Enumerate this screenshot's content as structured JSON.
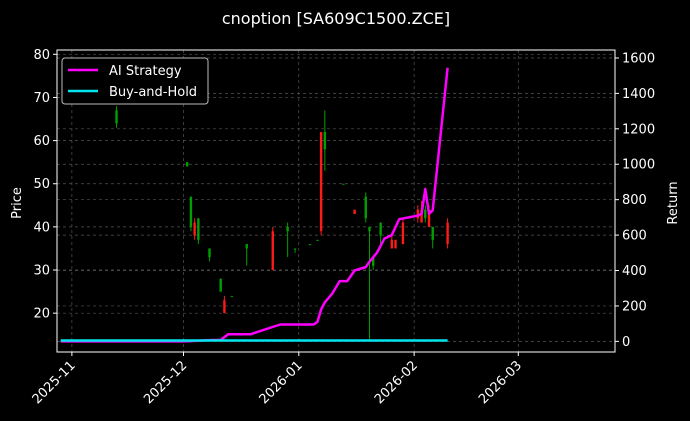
{
  "chart_data": {
    "type": "candlestick",
    "title": "cnoption [SA609C1500.ZCE]",
    "xlabel": "",
    "ylabel_left": "Price",
    "ylabel_right": "Return",
    "ylim_left": [
      11,
      81
    ],
    "ylim_right": [
      -60,
      1645
    ],
    "yticks_left": [
      20,
      30,
      40,
      50,
      60,
      70,
      80
    ],
    "yticks_right": [
      0,
      200,
      400,
      600,
      800,
      1000,
      1200,
      1400,
      1600
    ],
    "x_range": [
      "2025-10-28",
      "2026-03-27"
    ],
    "xticks": [
      "2025-11",
      "2025-12",
      "2026-01",
      "2026-02",
      "2026-03"
    ],
    "grid": true,
    "legend_position": "top-left",
    "colors": {
      "background": "#000000",
      "up": "#00a000",
      "down": "#ff1a1a",
      "strategy": "#ff00ff",
      "buy_hold": "#00e5ee"
    },
    "candles": [
      {
        "date": "2025-11-13",
        "open": 64,
        "close": 67,
        "high": 68,
        "low": 63
      },
      {
        "date": "2025-12-02",
        "open": 54,
        "close": 55,
        "high": 55,
        "low": 54
      },
      {
        "date": "2025-12-03",
        "open": 40,
        "close": 47,
        "high": 47,
        "low": 39
      },
      {
        "date": "2025-12-04",
        "open": 41,
        "close": 38,
        "high": 42,
        "low": 37
      },
      {
        "date": "2025-12-05",
        "open": 37,
        "close": 42,
        "high": 42,
        "low": 36
      },
      {
        "date": "2025-12-08",
        "open": 33,
        "close": 35,
        "high": 35,
        "low": 32
      },
      {
        "date": "2025-12-11",
        "open": 25,
        "close": 28,
        "high": 28,
        "low": 25
      },
      {
        "date": "2025-12-12",
        "open": 23,
        "close": 20,
        "high": 24,
        "low": 20
      },
      {
        "date": "2025-12-14",
        "open": 24,
        "close": 24,
        "high": 24,
        "low": 24
      },
      {
        "date": "2025-12-18",
        "open": 35,
        "close": 36,
        "high": 36,
        "low": 31
      },
      {
        "date": "2025-12-25",
        "open": 39,
        "close": 30,
        "high": 40,
        "low": 30
      },
      {
        "date": "2025-12-29",
        "open": 39,
        "close": 40,
        "high": 41,
        "low": 33
      },
      {
        "date": "2025-12-31",
        "open": 35,
        "close": 35,
        "high": 35,
        "low": 34
      },
      {
        "date": "2026-01-04",
        "open": 36,
        "close": 36,
        "high": 36,
        "low": 36
      },
      {
        "date": "2026-01-06",
        "open": 37,
        "close": 37,
        "high": 37,
        "low": 37
      },
      {
        "date": "2026-01-07",
        "open": 62,
        "close": 39,
        "high": 62,
        "low": 38
      },
      {
        "date": "2026-01-08",
        "open": 58,
        "close": 62,
        "high": 67,
        "low": 53
      },
      {
        "date": "2026-01-13",
        "open": 50,
        "close": 50,
        "high": 50,
        "low": 50
      },
      {
        "date": "2026-01-16",
        "open": 44,
        "close": 43,
        "high": 44,
        "low": 43
      },
      {
        "date": "2026-01-19",
        "open": 42,
        "close": 47,
        "high": 48,
        "low": 41
      },
      {
        "date": "2026-01-20",
        "open": 39,
        "close": 40,
        "high": 40,
        "low": 14
      },
      {
        "date": "2026-01-21",
        "open": 31,
        "close": 33,
        "high": 33,
        "low": 30
      },
      {
        "date": "2026-01-23",
        "open": 38,
        "close": 41,
        "high": 41,
        "low": 36
      },
      {
        "date": "2026-01-26",
        "open": 37,
        "close": 35,
        "high": 38,
        "low": 35
      },
      {
        "date": "2026-01-27",
        "open": 37,
        "close": 35,
        "high": 37,
        "low": 35
      },
      {
        "date": "2026-01-29",
        "open": 41,
        "close": 36,
        "high": 42,
        "low": 36
      },
      {
        "date": "2026-02-02",
        "open": 44,
        "close": 42,
        "high": 45,
        "low": 41
      },
      {
        "date": "2026-02-03",
        "open": 44,
        "close": 41,
        "high": 46,
        "low": 41
      },
      {
        "date": "2026-02-04",
        "open": 42,
        "close": 44,
        "high": 45,
        "low": 41
      },
      {
        "date": "2026-02-05",
        "open": 44,
        "close": 40,
        "high": 45,
        "low": 40
      },
      {
        "date": "2026-02-06",
        "open": 37,
        "close": 40,
        "high": 40,
        "low": 35
      },
      {
        "date": "2026-02-10",
        "open": 41,
        "close": 36,
        "high": 42,
        "low": 35
      }
    ],
    "series": [
      {
        "name": "AI Strategy",
        "points": [
          [
            "2025-10-29",
            0
          ],
          [
            "2025-12-01",
            0
          ],
          [
            "2025-12-09",
            8
          ],
          [
            "2025-12-11",
            8
          ],
          [
            "2025-12-13",
            40
          ],
          [
            "2025-12-19",
            40
          ],
          [
            "2025-12-27",
            95
          ],
          [
            "2025-12-29",
            95
          ],
          [
            "2026-01-05",
            95
          ],
          [
            "2026-01-06",
            110
          ],
          [
            "2026-01-07",
            180
          ],
          [
            "2026-01-08",
            220
          ],
          [
            "2026-01-10",
            270
          ],
          [
            "2026-01-12",
            340
          ],
          [
            "2026-01-14",
            340
          ],
          [
            "2026-01-16",
            400
          ],
          [
            "2026-01-19",
            420
          ],
          [
            "2026-01-20",
            450
          ],
          [
            "2026-01-22",
            500
          ],
          [
            "2026-01-24",
            580
          ],
          [
            "2026-01-26",
            600
          ],
          [
            "2026-01-28",
            690
          ],
          [
            "2026-02-02",
            710
          ],
          [
            "2026-02-03",
            720
          ],
          [
            "2026-02-04",
            860
          ],
          [
            "2026-02-05",
            720
          ],
          [
            "2026-02-06",
            740
          ],
          [
            "2026-02-10",
            1545
          ]
        ]
      },
      {
        "name": "Buy-and-Hold",
        "points": [
          [
            "2025-10-29",
            5
          ],
          [
            "2026-02-10",
            5
          ]
        ]
      }
    ]
  }
}
